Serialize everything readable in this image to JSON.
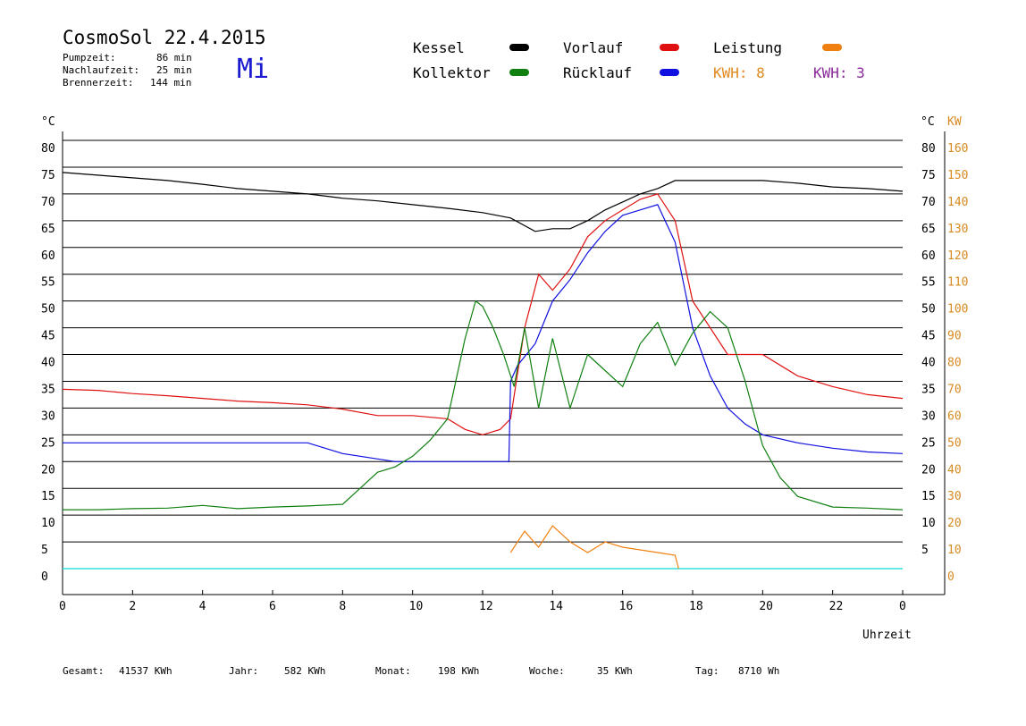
{
  "header": {
    "title": "CosmoSol 22.4.2015",
    "day": "Mi",
    "stats": [
      {
        "label": "Pumpzeit:",
        "value": "86 min"
      },
      {
        "label": "Nachlaufzeit:",
        "value": "25 min"
      },
      {
        "label": "Brennerzeit:",
        "value": "144 min"
      }
    ]
  },
  "legend": {
    "kessel": {
      "label": "Kessel",
      "color": "#000000"
    },
    "vorlauf": {
      "label": "Vorlauf",
      "color": "#e01010"
    },
    "leistung": {
      "label": "Leistung",
      "color": "#f08010"
    },
    "kollektor": {
      "label": "Kollektor",
      "color": "#108010"
    },
    "ruecklauf": {
      "label": "Rücklauf",
      "color": "#1010e0"
    },
    "kwh1": {
      "label": "KWH: 8",
      "color": "#e08a20"
    },
    "kwh2": {
      "label": "KWH: 3",
      "color": "#8a2a9a"
    }
  },
  "axes": {
    "left_unit": "°C",
    "right_unit_c": "°C",
    "right_unit_kw": "KW",
    "x_label": "Uhrzeit"
  },
  "footer": [
    {
      "label": "Gesamt:",
      "value": "41537 KWh"
    },
    {
      "label": "Jahr:",
      "value": "582 KWh"
    },
    {
      "label": "Monat:",
      "value": "198 KWh"
    },
    {
      "label": "Woche:",
      "value": "35 KWh"
    },
    {
      "label": "Tag:",
      "value": "8710 Wh"
    }
  ],
  "chart_data": {
    "type": "line",
    "x_unit": "hour",
    "xlim": [
      0,
      24
    ],
    "x_ticks": [
      "0",
      "2",
      "4",
      "6",
      "8",
      "10",
      "12",
      "14",
      "16",
      "18",
      "20",
      "22",
      "0"
    ],
    "ylim": [
      0,
      80
    ],
    "y_ticks": [
      "0",
      "5",
      "10",
      "15",
      "20",
      "25",
      "30",
      "35",
      "40",
      "45",
      "50",
      "55",
      "60",
      "65",
      "70",
      "75",
      "80"
    ],
    "y2_ticks": [
      "0",
      "10",
      "20",
      "30",
      "40",
      "50",
      "60",
      "70",
      "80",
      "90",
      "100",
      "110",
      "120",
      "130",
      "140",
      "150",
      "160"
    ],
    "y_right_ticks": [
      "",
      "5",
      "10",
      "15",
      "20",
      "25",
      "30",
      "35",
      "40",
      "45",
      "50",
      "55",
      "60",
      "65",
      "70",
      "75",
      "80"
    ],
    "grid": true,
    "series": [
      {
        "name": "Kessel",
        "color": "#000000",
        "x": [
          0,
          1,
          2,
          3,
          4,
          5,
          6,
          7,
          8,
          9,
          10,
          11,
          12,
          12.8,
          13.5,
          14,
          14.5,
          15,
          15.5,
          16,
          16.5,
          17,
          17.5,
          18,
          19,
          20,
          21,
          22,
          23,
          24
        ],
        "y": [
          74,
          73.5,
          73,
          72.5,
          71.8,
          71,
          70.5,
          70,
          69.2,
          68.7,
          68,
          67.3,
          66.5,
          65.5,
          63,
          63.5,
          63.5,
          65,
          67,
          68.5,
          70,
          71,
          72.5,
          72.5,
          72.5,
          72.5,
          72,
          71.3,
          71,
          70.5
        ]
      },
      {
        "name": "Vorlauf",
        "color": "#e01010",
        "x": [
          0,
          1,
          2,
          3,
          4,
          5,
          6,
          7,
          8,
          9,
          10,
          11,
          11.5,
          12,
          12.5,
          12.8,
          13.2,
          13.6,
          14,
          14.5,
          15,
          15.5,
          16,
          16.5,
          17,
          17.5,
          18,
          18.5,
          19,
          20,
          21,
          22,
          23,
          24
        ],
        "y": [
          33.5,
          33.3,
          32.7,
          32.3,
          31.8,
          31.3,
          31,
          30.6,
          29.8,
          28.6,
          28.6,
          28,
          26,
          25,
          26,
          28,
          45,
          55,
          52,
          56,
          62,
          65,
          67,
          69,
          70,
          65,
          50,
          45,
          40,
          40,
          36,
          34,
          32.5,
          31.8
        ]
      },
      {
        "name": "Rücklauf",
        "color": "#1010e0",
        "x": [
          0,
          1,
          2,
          3,
          4,
          5,
          6,
          7,
          8,
          9,
          9.5,
          10,
          11,
          12,
          12.75,
          12.8,
          13,
          13.5,
          14,
          14.5,
          15,
          15.5,
          16,
          16.5,
          17,
          17.5,
          18,
          18.5,
          19,
          19.5,
          20,
          21,
          22,
          23,
          24
        ],
        "y": [
          23.5,
          23.5,
          23.5,
          23.5,
          23.5,
          23.5,
          23.5,
          23.5,
          21.5,
          20.5,
          20,
          20,
          20,
          20,
          20,
          35,
          38,
          42,
          50,
          54,
          59,
          63,
          66,
          67,
          68,
          61,
          45,
          36,
          30,
          27,
          25,
          23.5,
          22.5,
          21.8,
          21.5
        ]
      },
      {
        "name": "Kollektor",
        "color": "#108010",
        "x": [
          0,
          1,
          2,
          3,
          4,
          5,
          6,
          7,
          8,
          8.5,
          9,
          9.5,
          10,
          10.5,
          11,
          11.5,
          11.8,
          12,
          12.3,
          12.6,
          12.9,
          13.2,
          13.6,
          14,
          14.5,
          15,
          15.5,
          16,
          16.5,
          17,
          17.5,
          18,
          18.5,
          19,
          19.5,
          20,
          20.5,
          21,
          22,
          23,
          24
        ],
        "y": [
          11,
          11,
          11.2,
          11.3,
          11.8,
          11.2,
          11.5,
          11.7,
          12,
          15,
          18,
          19,
          21,
          24,
          28,
          43,
          50,
          49,
          45,
          40,
          34,
          45,
          30,
          43,
          30,
          40,
          37,
          34,
          42,
          46,
          38,
          44,
          48,
          45,
          35,
          23,
          17,
          13.5,
          11.5,
          11.3,
          11
        ]
      },
      {
        "name": "Leistung",
        "color": "#f08010",
        "x": [
          12.8,
          13.2,
          13.6,
          14,
          14.5,
          15,
          15.5,
          16,
          16.5,
          17,
          17.5,
          17.6
        ],
        "y": [
          3,
          7,
          4,
          8,
          5,
          3,
          5,
          4,
          3.5,
          3,
          2.5,
          0
        ]
      }
    ]
  }
}
